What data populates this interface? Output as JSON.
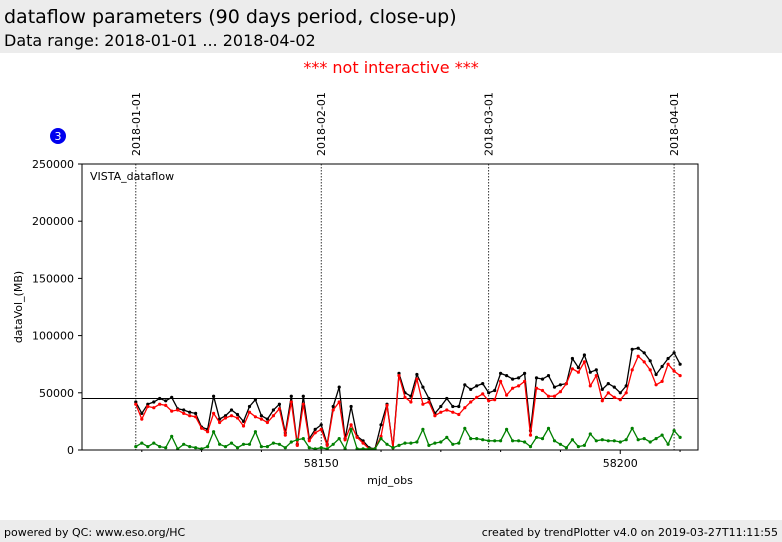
{
  "header": {
    "title": "dataflow parameters (90 days period, close-up)",
    "subtitle": "Data range: 2018-01-01 ... 2018-04-02"
  },
  "notice": "*** not interactive ***",
  "footer": {
    "left": "powered by QC: www.eso.org/HC",
    "right": "created by trendPlotter v4.0 on 2019-03-27T11:11:55"
  },
  "badge": "3",
  "colors": {
    "black": "#000000",
    "red": "#ff0000",
    "green": "#008000"
  },
  "chart_data": {
    "type": "line",
    "panel_label": "VISTA_dataflow",
    "xlabel": "mjd_obs",
    "ylabel": "dataVol_(MB)",
    "xlim": [
      58110,
      58213
    ],
    "ylim": [
      0,
      250000
    ],
    "xticks": [
      58150,
      58200
    ],
    "yticks": [
      0,
      50000,
      100000,
      150000,
      200000,
      250000
    ],
    "ytick_labels": [
      "0",
      "50000",
      "100000",
      "150000",
      "200000",
      "250000"
    ],
    "hline": 45000,
    "vlines": [
      {
        "x": 58119,
        "label": "2018-01-01"
      },
      {
        "x": 58150,
        "label": "2018-02-01"
      },
      {
        "x": 58178,
        "label": "2018-03-01"
      },
      {
        "x": 58209,
        "label": "2018-04-01"
      }
    ],
    "x": [
      58119,
      58120,
      58121,
      58122,
      58123,
      58124,
      58125,
      58126,
      58127,
      58128,
      58129,
      58130,
      58131,
      58132,
      58133,
      58134,
      58135,
      58136,
      58137,
      58138,
      58139,
      58140,
      58141,
      58142,
      58143,
      58144,
      58145,
      58146,
      58147,
      58148,
      58149,
      58150,
      58151,
      58152,
      58153,
      58154,
      58155,
      58156,
      58157,
      58158,
      58159,
      58160,
      58161,
      58162,
      58163,
      58164,
      58165,
      58166,
      58167,
      58168,
      58169,
      58170,
      58171,
      58172,
      58173,
      58174,
      58175,
      58176,
      58177,
      58178,
      58179,
      58180,
      58181,
      58182,
      58183,
      58184,
      58185,
      58186,
      58187,
      58188,
      58189,
      58190,
      58191,
      58192,
      58193,
      58194,
      58195,
      58196,
      58197,
      58198,
      58199,
      58200,
      58201,
      58202,
      58203,
      58204,
      58205,
      58206,
      58207,
      58208,
      58209,
      58210
    ],
    "series": [
      {
        "color": "#000000",
        "values": [
          42000,
          32000,
          40000,
          42000,
          45000,
          43000,
          46000,
          36000,
          35000,
          33000,
          32000,
          20000,
          18000,
          47000,
          27000,
          30000,
          35000,
          31000,
          25000,
          38000,
          44000,
          30000,
          27000,
          35000,
          40000,
          15000,
          47000,
          5000,
          47000,
          10000,
          18000,
          22000,
          5000,
          38000,
          55000,
          10000,
          38000,
          12000,
          8000,
          2000,
          1000,
          22000,
          40000,
          2000,
          67000,
          50000,
          47000,
          66000,
          55000,
          45000,
          32000,
          38000,
          45000,
          38000,
          38000,
          57000,
          53000,
          56000,
          58000,
          50000,
          52000,
          67000,
          65000,
          62000,
          63000,
          67000,
          17000,
          63000,
          62000,
          65000,
          55000,
          57000,
          58000,
          80000,
          72000,
          83000,
          68000,
          70000,
          53000,
          58000,
          55000,
          50000,
          56000,
          88000,
          89000,
          85000,
          78000,
          66000,
          73000,
          80000,
          85000,
          75000
        ]
      },
      {
        "color": "#ff0000",
        "values": [
          40000,
          27000,
          38000,
          37000,
          40000,
          39000,
          34000,
          35000,
          32000,
          30000,
          29000,
          19000,
          16000,
          32000,
          24000,
          28000,
          30000,
          28000,
          21000,
          33000,
          29000,
          27000,
          24000,
          30000,
          36000,
          13000,
          42000,
          4000,
          40000,
          8000,
          15000,
          18000,
          4000,
          35000,
          42000,
          9000,
          22000,
          11000,
          6000,
          1000,
          1000,
          12000,
          39000,
          2000,
          65000,
          46000,
          42000,
          62000,
          40000,
          42000,
          30000,
          33000,
          35000,
          33000,
          31000,
          37000,
          42000,
          46000,
          49000,
          43000,
          44000,
          60000,
          48000,
          54000,
          56000,
          60000,
          13000,
          54000,
          52000,
          47000,
          47000,
          51000,
          58000,
          71000,
          68000,
          77000,
          56000,
          65000,
          43000,
          50000,
          46000,
          44000,
          50000,
          70000,
          82000,
          77000,
          70000,
          57000,
          60000,
          75000,
          69000,
          65000
        ]
      },
      {
        "color": "#008000",
        "values": [
          3000,
          6000,
          3000,
          6000,
          3000,
          2000,
          12000,
          1000,
          5000,
          3000,
          2000,
          1000,
          3000,
          16000,
          5000,
          3000,
          6000,
          2000,
          5000,
          5000,
          16000,
          3000,
          3000,
          6000,
          5000,
          2000,
          7000,
          9000,
          10000,
          2000,
          1000,
          2000,
          1000,
          5000,
          10000,
          1000,
          18000,
          1000,
          1000,
          1000,
          1000,
          10000,
          5000,
          2000,
          4000,
          6000,
          6000,
          7000,
          18000,
          4000,
          6000,
          7000,
          11000,
          5000,
          6000,
          19000,
          10000,
          10000,
          9000,
          8000,
          8000,
          8000,
          18000,
          8000,
          8000,
          7000,
          3000,
          11000,
          10000,
          19000,
          8000,
          5000,
          2000,
          9000,
          3000,
          4000,
          14000,
          8000,
          9000,
          8000,
          8000,
          7000,
          9000,
          19000,
          9000,
          10000,
          7000,
          10000,
          13000,
          5000,
          17000,
          11000
        ]
      }
    ]
  }
}
